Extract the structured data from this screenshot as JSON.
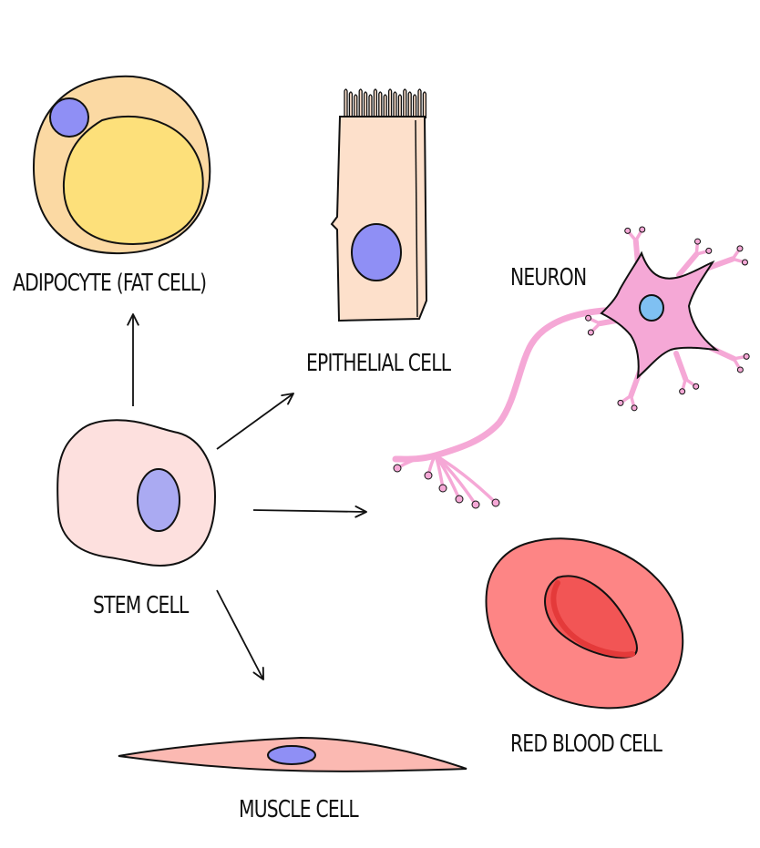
{
  "labels": {
    "adipocyte": "ADIPOCYTE (FAT CELL)",
    "epithelial": "EPITHELIAL CELL",
    "neuron": "NEURON",
    "stem": "STEM CELL",
    "red_blood": "RED BLOOD CELL",
    "muscle": "MUSCLE CELL"
  },
  "colors": {
    "outline": "#111111",
    "adipocyte_body": "#fbd9a3",
    "fat_droplet": "#fde07a",
    "nucleus_purple": "#8f8ff5",
    "nucleus_stem": "#aaaaf2",
    "epithelial_body": "#fde0cb",
    "neuron_body": "#f5a8d6",
    "neuron_nucleus": "#7fc0f2",
    "stem_body": "#fde0de",
    "rbc_body": "#fd8585",
    "rbc_center": "#f25555",
    "muscle_body": "#fbb9b2"
  },
  "arrows": [
    {
      "from": "stem",
      "to": "adipocyte"
    },
    {
      "from": "stem",
      "to": "epithelial"
    },
    {
      "from": "stem",
      "to": "neuron"
    },
    {
      "from": "stem",
      "to": "muscle"
    }
  ]
}
